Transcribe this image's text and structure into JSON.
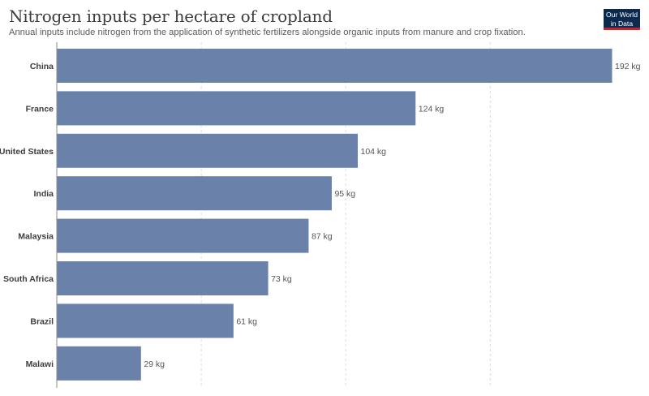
{
  "header": {
    "title": "Nitrogen inputs per hectare of cropland",
    "subtitle": "Annual inputs include nitrogen from the application of synthetic fertilizers alongside organic inputs from manure and crop fixation."
  },
  "logo": {
    "line1": "Our World",
    "line2": "in Data",
    "background": "#0c2a4d",
    "accent": "#c0272d"
  },
  "colors": {
    "bar": "#6a81a9",
    "label": "#3d3d3d",
    "value_label": "#555555",
    "grid": "#dddddd",
    "axis": "#8a8a8a"
  },
  "chart_data": {
    "type": "bar",
    "orientation": "horizontal",
    "title": "Nitrogen inputs per hectare of cropland",
    "subtitle": "Annual inputs include nitrogen from the application of synthetic fertilizers alongside organic inputs from manure and crop fixation.",
    "categories": [
      "China",
      "France",
      "United States",
      "India",
      "Malaysia",
      "South Africa",
      "Brazil",
      "Malawi"
    ],
    "values": [
      192,
      124,
      104,
      95,
      87,
      73,
      61,
      29
    ],
    "value_labels": [
      "192 kg",
      "124 kg",
      "104 kg",
      "95 kg",
      "87 kg",
      "73 kg",
      "61 kg",
      "29 kg"
    ],
    "unit": "kg",
    "xlim": [
      0,
      192
    ],
    "gridlines": [
      0,
      50,
      100,
      150
    ],
    "grid": true,
    "legend": "none"
  }
}
